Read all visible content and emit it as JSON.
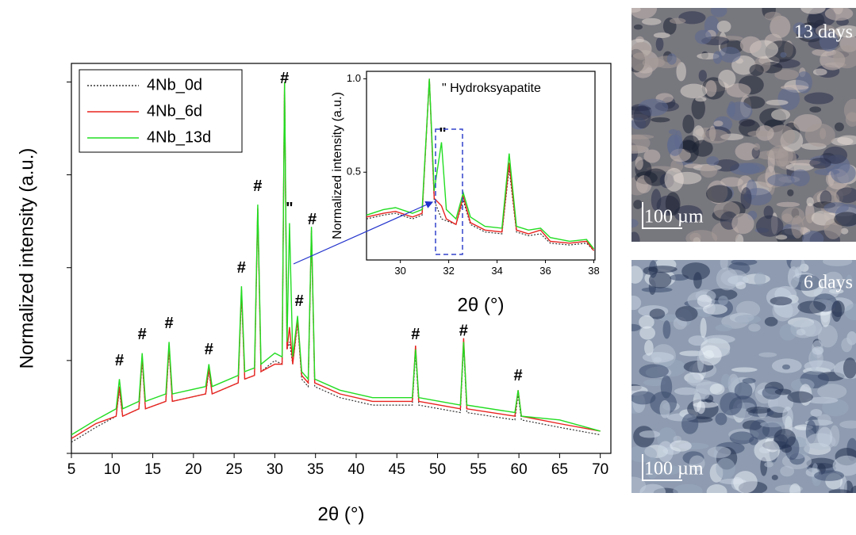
{
  "chart_data": [
    {
      "type": "line",
      "x_label": "2θ (°)",
      "y_label": "Normalized intensity (a.u.)",
      "xlim": [
        5,
        71.3
      ],
      "xticks": [
        5,
        10,
        15,
        20,
        25,
        30,
        35,
        40,
        45,
        50,
        55,
        60,
        65,
        70
      ],
      "ylim": [
        0,
        1.05
      ],
      "yticks": [
        0,
        0.25,
        0.5,
        0.75,
        1
      ],
      "x": [
        5,
        8,
        10.5,
        10.9,
        11.3,
        13.3,
        13.7,
        14.1,
        16.6,
        17,
        17.4,
        21.5,
        21.9,
        22.3,
        25.5,
        25.9,
        26.3,
        27.5,
        27.9,
        28.3,
        30,
        30.9,
        31.2,
        31.5,
        31.8,
        32.2,
        32.8,
        33.3,
        34.1,
        34.5,
        34.9,
        38,
        42,
        46.9,
        47.3,
        47.7,
        52.8,
        53.2,
        53.6,
        59.5,
        59.9,
        60.3,
        65,
        70
      ],
      "series": [
        {
          "name": "4Nb_0d",
          "color": "#333333",
          "dashed": true,
          "values": [
            0.03,
            0.07,
            0.1,
            0.17,
            0.1,
            0.12,
            0.25,
            0.12,
            0.14,
            0.28,
            0.14,
            0.16,
            0.22,
            0.16,
            0.19,
            0.43,
            0.2,
            0.21,
            0.66,
            0.22,
            0.25,
            0.24,
            1.0,
            0.28,
            0.3,
            0.24,
            0.35,
            0.2,
            0.18,
            0.6,
            0.18,
            0.15,
            0.13,
            0.13,
            0.27,
            0.13,
            0.11,
            0.29,
            0.11,
            0.09,
            0.16,
            0.09,
            0.07,
            0.05
          ]
        },
        {
          "name": "4Nb_6d",
          "color": "#e8231f",
          "dashed": false,
          "values": [
            0.04,
            0.08,
            0.1,
            0.18,
            0.1,
            0.12,
            0.26,
            0.12,
            0.14,
            0.29,
            0.14,
            0.16,
            0.23,
            0.16,
            0.19,
            0.44,
            0.2,
            0.21,
            0.66,
            0.22,
            0.24,
            0.24,
            1.0,
            0.28,
            0.34,
            0.24,
            0.36,
            0.21,
            0.19,
            0.6,
            0.19,
            0.16,
            0.14,
            0.14,
            0.29,
            0.14,
            0.12,
            0.31,
            0.12,
            0.1,
            0.17,
            0.1,
            0.08,
            0.06
          ]
        },
        {
          "name": "4Nb_13d",
          "color": "#22dd22",
          "dashed": false,
          "values": [
            0.05,
            0.09,
            0.12,
            0.2,
            0.12,
            0.14,
            0.27,
            0.14,
            0.16,
            0.3,
            0.16,
            0.18,
            0.24,
            0.18,
            0.21,
            0.45,
            0.22,
            0.23,
            0.67,
            0.24,
            0.27,
            0.26,
            1.0,
            0.3,
            0.62,
            0.26,
            0.37,
            0.22,
            0.2,
            0.61,
            0.2,
            0.17,
            0.15,
            0.15,
            0.28,
            0.15,
            0.13,
            0.3,
            0.13,
            0.11,
            0.17,
            0.1,
            0.09,
            0.06
          ]
        }
      ],
      "annotations": [
        {
          "text": "#",
          "x": 10.9,
          "y": 0.24
        },
        {
          "text": "#",
          "x": 13.7,
          "y": 0.31
        },
        {
          "text": "#",
          "x": 17,
          "y": 0.34
        },
        {
          "text": "#",
          "x": 21.9,
          "y": 0.27
        },
        {
          "text": "#",
          "x": 25.9,
          "y": 0.49
        },
        {
          "text": "#",
          "x": 27.9,
          "y": 0.71
        },
        {
          "text": "#",
          "x": 31.2,
          "y": 1.0
        },
        {
          "text": "\"",
          "x": 31.8,
          "y": 0.65
        },
        {
          "text": "#",
          "x": 33,
          "y": 0.4
        },
        {
          "text": "#",
          "x": 34.6,
          "y": 0.62
        },
        {
          "text": "#",
          "x": 47.3,
          "y": 0.31
        },
        {
          "text": "#",
          "x": 53.2,
          "y": 0.32
        },
        {
          "text": "#",
          "x": 59.9,
          "y": 0.2
        }
      ]
    },
    {
      "type": "line",
      "x_label": "2θ (°)",
      "y_label": "Normalized intensity (a.u.)",
      "legend_note": "\" Hydroksyapatite",
      "xlim": [
        28.6,
        38.05
      ],
      "xticks": [
        30,
        32,
        34,
        36,
        38
      ],
      "ylim": [
        0.03,
        1.04
      ],
      "yticks": [
        0.5,
        {
          "value": 1,
          "label": "1.0"
        }
      ],
      "x": [
        28.6,
        29.3,
        29.8,
        30.5,
        30.9,
        31.2,
        31.4,
        31.7,
        31.9,
        32.3,
        32.6,
        32.9,
        33.5,
        34.2,
        34.5,
        34.8,
        35.3,
        35.8,
        36.2,
        37,
        37.7,
        38
      ],
      "series": [
        {
          "name": "4Nb_0d",
          "color": "#333333",
          "dashed": true,
          "values": [
            0.25,
            0.27,
            0.28,
            0.25,
            0.27,
            1.0,
            0.35,
            0.25,
            0.24,
            0.22,
            0.35,
            0.22,
            0.18,
            0.17,
            0.52,
            0.18,
            0.16,
            0.17,
            0.12,
            0.11,
            0.12,
            0.08
          ]
        },
        {
          "name": "4Nb_6d",
          "color": "#e8231f",
          "dashed": false,
          "values": [
            0.26,
            0.28,
            0.29,
            0.26,
            0.28,
            1.0,
            0.36,
            0.32,
            0.25,
            0.22,
            0.37,
            0.23,
            0.19,
            0.18,
            0.55,
            0.19,
            0.17,
            0.19,
            0.13,
            0.12,
            0.13,
            0.08
          ]
        },
        {
          "name": "4Nb_13d",
          "color": "#22dd22",
          "dashed": false,
          "values": [
            0.27,
            0.3,
            0.31,
            0.28,
            0.3,
            1.0,
            0.4,
            0.66,
            0.3,
            0.25,
            0.39,
            0.26,
            0.21,
            0.2,
            0.6,
            0.21,
            0.19,
            0.2,
            0.15,
            0.13,
            0.14,
            0.09
          ]
        }
      ],
      "annotations": [
        {
          "text": "\"",
          "x": 31.75,
          "y": 0.69
        }
      ]
    }
  ],
  "images": [
    {
      "label": "13 days",
      "scale": "100 µm"
    },
    {
      "label": "6 days",
      "scale": "100 µm"
    }
  ]
}
